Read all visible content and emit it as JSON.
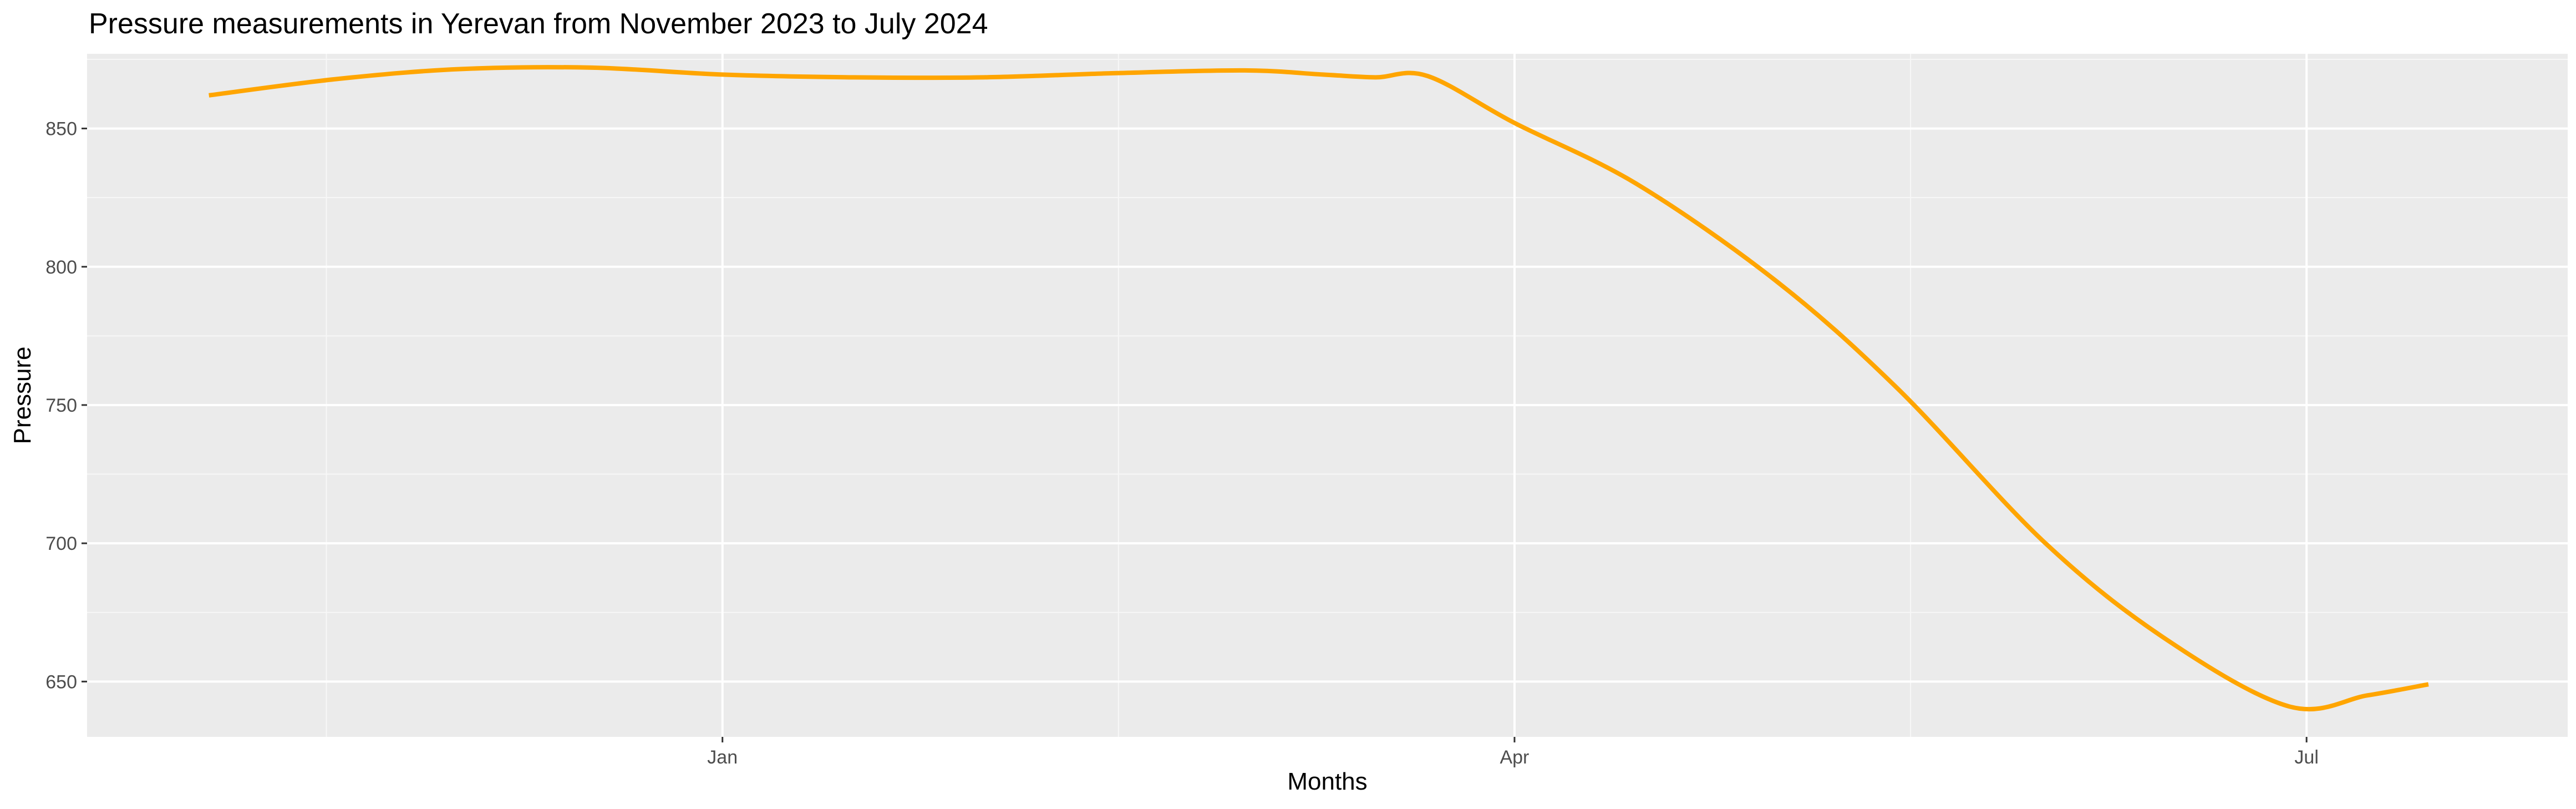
{
  "chart_data": {
    "type": "line",
    "title": "Pressure measurements in Yerevan from November 2023 to July 2024",
    "xlabel": "Months",
    "ylabel": "Pressure",
    "x_ticks": [
      {
        "date": "2024-01-01",
        "label": "Jan"
      },
      {
        "date": "2024-04-01",
        "label": "Apr"
      },
      {
        "date": "2024-07-01",
        "label": "Jul"
      }
    ],
    "y_ticks": [
      650,
      700,
      750,
      800,
      850
    ],
    "xlim": [
      "2023-10-20",
      "2024-07-31"
    ],
    "ylim": [
      630,
      877
    ],
    "grid": true,
    "series": [
      {
        "name": "",
        "color": "#FFA500",
        "points": [
          {
            "x": "2023-11-03",
            "y": 862
          },
          {
            "x": "2023-11-18",
            "y": 868
          },
          {
            "x": "2023-12-02",
            "y": 871.5
          },
          {
            "x": "2023-12-17",
            "y": 872
          },
          {
            "x": "2024-01-01",
            "y": 869.5
          },
          {
            "x": "2024-01-16",
            "y": 868.5
          },
          {
            "x": "2024-01-31",
            "y": 868.5
          },
          {
            "x": "2024-02-15",
            "y": 870
          },
          {
            "x": "2024-03-01",
            "y": 871
          },
          {
            "x": "2024-03-10",
            "y": 869.5
          },
          {
            "x": "2024-03-16",
            "y": 868.5
          },
          {
            "x": "2024-03-22",
            "y": 869
          },
          {
            "x": "2024-04-01",
            "y": 852
          },
          {
            "x": "2024-04-15",
            "y": 830
          },
          {
            "x": "2024-05-01",
            "y": 795
          },
          {
            "x": "2024-05-15",
            "y": 756
          },
          {
            "x": "2024-06-01",
            "y": 700
          },
          {
            "x": "2024-06-15",
            "y": 665
          },
          {
            "x": "2024-06-29",
            "y": 641
          },
          {
            "x": "2024-07-08",
            "y": 645
          },
          {
            "x": "2024-07-15",
            "y": 649
          }
        ]
      }
    ]
  }
}
